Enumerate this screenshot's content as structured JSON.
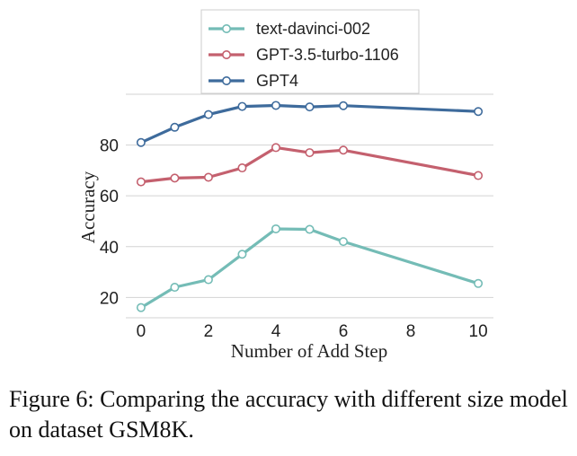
{
  "chart_data": {
    "type": "line",
    "title": "",
    "xlabel": "Number of Add Step",
    "ylabel": "Accuracy",
    "x_ticks": [
      0,
      2,
      4,
      6,
      8,
      10
    ],
    "y_ticks": [
      20,
      40,
      60,
      80
    ],
    "xlim": [
      -0.45,
      10.45
    ],
    "ylim": [
      12,
      100
    ],
    "grid": "horizontal",
    "legend_position": "top-center",
    "series": [
      {
        "name": "text-davinci-002",
        "color": "#74bcb6",
        "x": [
          0,
          1,
          2,
          3,
          4,
          5,
          6,
          10
        ],
        "values": [
          16,
          24,
          27,
          37,
          47,
          46.8,
          42,
          25.5
        ]
      },
      {
        "name": "GPT-3.5-turbo-1106",
        "color": "#c4606e",
        "x": [
          0,
          1,
          2,
          3,
          4,
          5,
          6,
          10
        ],
        "values": [
          65.5,
          67,
          67.3,
          71,
          79,
          77,
          78,
          68
        ]
      },
      {
        "name": "GPT4",
        "color": "#3e6b9c",
        "x": [
          0,
          1,
          2,
          3,
          4,
          5,
          6,
          10
        ],
        "values": [
          81,
          87,
          92,
          95.2,
          95.6,
          95,
          95.5,
          93.2
        ]
      }
    ]
  },
  "caption": "Figure 6: Comparing the accuracy with different size model on dataset GSM8K."
}
